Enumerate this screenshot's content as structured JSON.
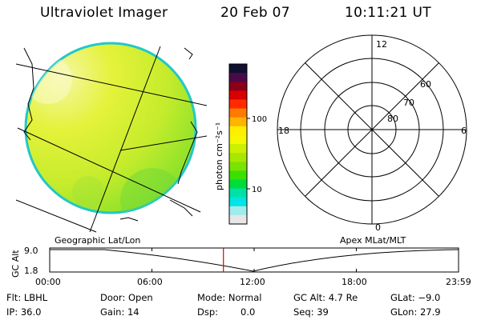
{
  "header": {
    "instrument": "Ultraviolet Imager",
    "date": "20 Feb 07",
    "time": "10:11:21 UT"
  },
  "colorbar": {
    "unit_label": "photon cm⁻²s⁻¹",
    "ticks": [
      "100",
      "10"
    ],
    "colors": [
      "#101030",
      "#4a0a4a",
      "#8a0018",
      "#d80000",
      "#ff2a00",
      "#ff7a00",
      "#ffb400",
      "#ffee00",
      "#f4f800",
      "#ccf000",
      "#a8e800",
      "#7ce200",
      "#3ce000",
      "#00dc3c",
      "#00e0a8",
      "#00e4e4",
      "#a0ecec",
      "#e6e6e6"
    ]
  },
  "polar_grid": {
    "labels": {
      "top": "12",
      "left": "18",
      "right": "6",
      "bottom": "0"
    },
    "rings": [
      "60",
      "70",
      "80"
    ]
  },
  "map_labels": {
    "left": "Geographic Lat/Lon",
    "right": "Apex MLat/MLT"
  },
  "timeline": {
    "axis_label": "GC Alt",
    "y_ticks": [
      "9.0",
      "1.8"
    ],
    "x_ticks": [
      "00:00",
      "06:00",
      "12:00",
      "18:00",
      "23:59"
    ],
    "marker_time": "10:11:21",
    "marker_color": "#e00000"
  },
  "info": {
    "filter": "Flt: LBHL",
    "door": "Door: Open",
    "mode": "Mode: Normal",
    "gc_alt": "GC Alt: 4.7 Re",
    "glat": "GLat: −9.0",
    "ip": "IP: 36.0",
    "gain": "Gain: 14",
    "dsp_label": "Dsp:",
    "dsp_value": "0.0",
    "seq": "Seq: 39",
    "glon": "GLon: 27.9"
  }
}
